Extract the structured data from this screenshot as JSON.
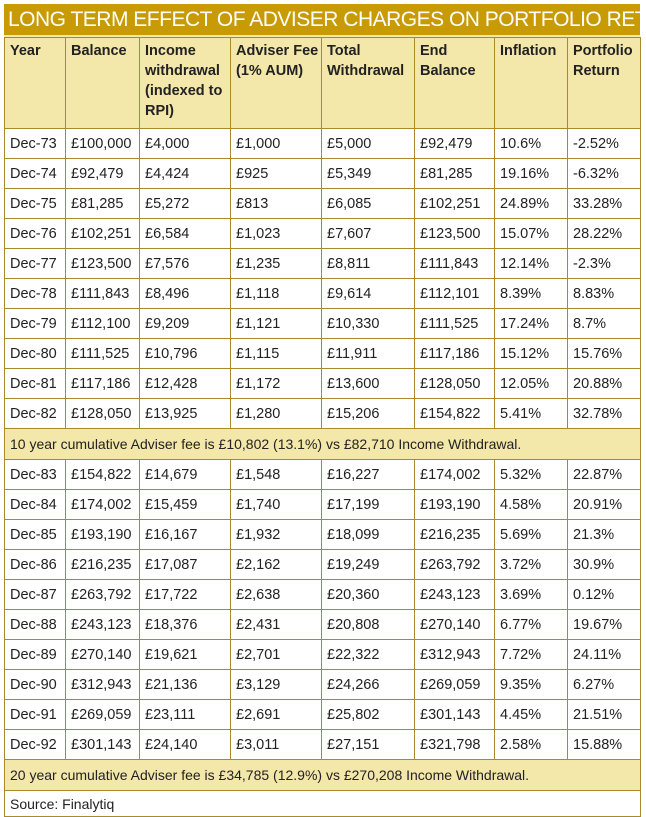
{
  "title": "LONG TERM EFFECT OF ADVISER CHARGES ON PORTFOLIO RETURN",
  "columns": [
    "Year",
    "Balance",
    "Income withdrawal (indexed to RPI)",
    "Adviser Fee (1% AUM)",
    "Total Withdrawal",
    "End Balance",
    "Inflation",
    "Portfolio Return"
  ],
  "rows_a": [
    [
      "Dec-73",
      "£100,000",
      "£4,000",
      "£1,000",
      "£5,000",
      "£92,479",
      "10.6%",
      "-2.52%"
    ],
    [
      "Dec-74",
      "£92,479",
      "£4,424",
      "£925",
      "£5,349",
      "£81,285",
      "19.16%",
      "-6.32%"
    ],
    [
      "Dec-75",
      "£81,285",
      "£5,272",
      "£813",
      "£6,085",
      "£102,251",
      "24.89%",
      "33.28%"
    ],
    [
      "Dec-76",
      "£102,251",
      "£6,584",
      "£1,023",
      "£7,607",
      "£123,500",
      "15.07%",
      "28.22%"
    ],
    [
      "Dec-77",
      "£123,500",
      "£7,576",
      "£1,235",
      "£8,811",
      "£111,843",
      "12.14%",
      "-2.3%"
    ],
    [
      "Dec-78",
      "£111,843",
      "£8,496",
      "£1,118",
      "£9,614",
      "£112,101",
      "8.39%",
      "8.83%"
    ],
    [
      "Dec-79",
      "£112,100",
      "£9,209",
      "£1,121",
      "£10,330",
      "£111,525",
      "17.24%",
      "8.7%"
    ],
    [
      "Dec-80",
      "£111,525",
      "£10,796",
      "£1,115",
      "£11,911",
      "£117,186",
      "15.12%",
      "15.76%"
    ],
    [
      "Dec-81",
      "£117,186",
      "£12,428",
      "£1,172",
      "£13,600",
      "£128,050",
      "12.05%",
      "20.88%"
    ],
    [
      "Dec-82",
      "£128,050",
      "£13,925",
      "£1,280",
      "£15,206",
      "£154,822",
      "5.41%",
      "32.78%"
    ]
  ],
  "note_a": "10 year cumulative Adviser fee is £10,802 (13.1%) vs £82,710 Income Withdrawal.",
  "rows_b": [
    [
      "Dec-83",
      "£154,822",
      "£14,679",
      "£1,548",
      "£16,227",
      "£174,002",
      "5.32%",
      "22.87%"
    ],
    [
      "Dec-84",
      "£174,002",
      "£15,459",
      "£1,740",
      "£17,199",
      "£193,190",
      "4.58%",
      "20.91%"
    ],
    [
      "Dec-85",
      "£193,190",
      "£16,167",
      "£1,932",
      "£18,099",
      "£216,235",
      "5.69%",
      "21.3%"
    ],
    [
      "Dec-86",
      "£216,235",
      "£17,087",
      "£2,162",
      "£19,249",
      "£263,792",
      "3.72%",
      "30.9%"
    ],
    [
      "Dec-87",
      "£263,792",
      "£17,722",
      "£2,638",
      "£20,360",
      "£243,123",
      "3.69%",
      "0.12%"
    ],
    [
      "Dec-88",
      "£243,123",
      "£18,376",
      "£2,431",
      "£20,808",
      "£270,140",
      "6.77%",
      "19.67%"
    ],
    [
      "Dec-89",
      "£270,140",
      "£19,621",
      "£2,701",
      "£22,322",
      "£312,943",
      "7.72%",
      "24.11%"
    ],
    [
      "Dec-90",
      "£312,943",
      "£21,136",
      "£3,129",
      "£24,266",
      "£269,059",
      "9.35%",
      "6.27%"
    ],
    [
      "Dec-91",
      "£269,059",
      "£23,111",
      "£2,691",
      "£25,802",
      "£301,143",
      "4.45%",
      "21.51%"
    ],
    [
      "Dec-92",
      "£301,143",
      "£24,140",
      "£3,011",
      "£27,151",
      "£321,798",
      "2.58%",
      "15.88%"
    ]
  ],
  "note_b": "20 year cumulative Adviser fee is £34,785 (12.9%) vs £270,208 Income Withdrawal.",
  "source": "Source: Finalytiq",
  "colors": {
    "title_bg": "#c89b05",
    "title_text": "#ffffff",
    "header_bg": "#f3e7a9",
    "border": "#a98a2a"
  }
}
